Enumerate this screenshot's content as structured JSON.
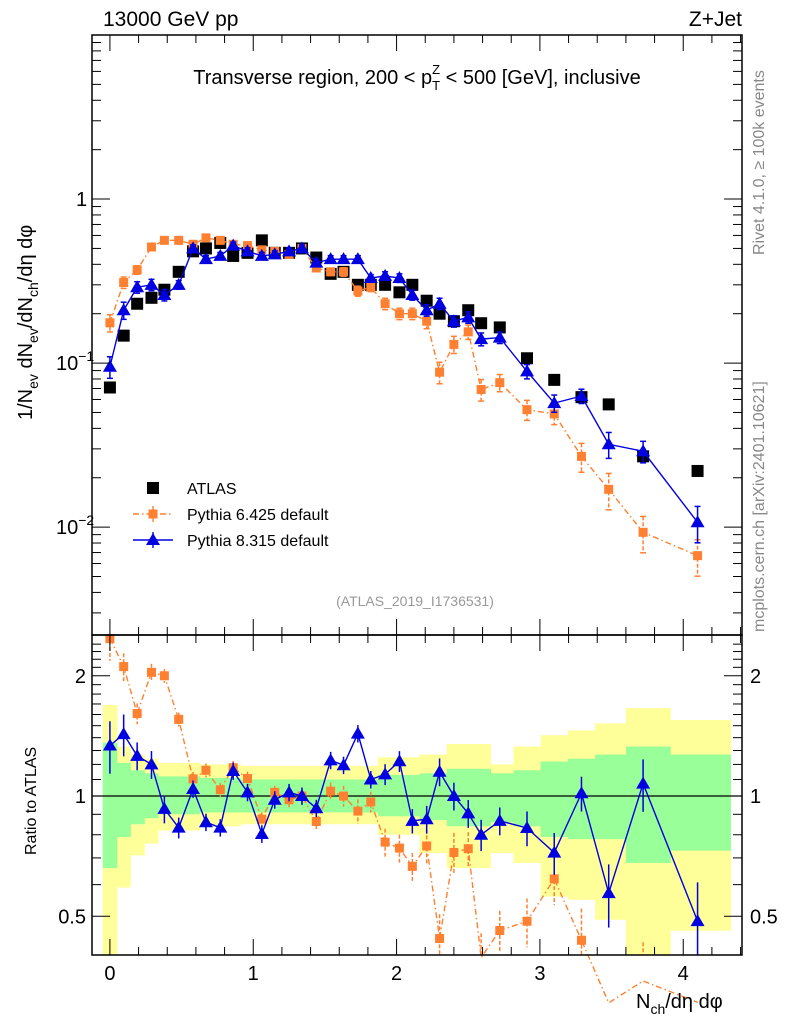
{
  "header": {
    "left": "13000 GeV pp",
    "right": "Z+Jet"
  },
  "side_text": {
    "rivet": "Rivet 4.1.0, ≥ 100k events",
    "mcplots": "mcplots.cern.ch [arXiv:2401.10621]"
  },
  "watermark": "(ATLAS_2019_I1736531)",
  "chart_data": [
    {
      "type": "scatter",
      "title_parts": {
        "pre": "Transverse region, 200 < p",
        "sup": "Z",
        "sub": "T",
        "post": " < 500 [GeV], inclusive"
      },
      "ylabel_parts": [
        "1/N",
        "ev",
        " dN",
        "ev",
        "/dN",
        "ch",
        "/dη dφ"
      ],
      "yscale": "log",
      "ylim": [
        0.0022,
        10
      ],
      "xlim": [
        -0.125,
        4.41
      ],
      "ytick_labels": [
        {
          "value": 1,
          "base": "1",
          "exp": ""
        },
        {
          "value": 0.1,
          "base": "10",
          "exp": "−1"
        },
        {
          "value": 0.01,
          "base": "10",
          "exp": "−2"
        }
      ],
      "x": [
        0,
        0.096,
        0.19,
        0.29,
        0.38,
        0.48,
        0.58,
        0.67,
        0.77,
        0.86,
        0.96,
        1.06,
        1.15,
        1.25,
        1.34,
        1.44,
        1.54,
        1.63,
        1.73,
        1.82,
        1.92,
        2.02,
        2.11,
        2.21,
        2.3,
        2.4,
        2.5,
        2.59,
        2.72,
        2.91,
        3.1,
        3.29,
        3.48,
        3.72,
        4.1
      ],
      "bin_edges": [
        -0.05,
        0.048,
        0.143,
        0.24,
        0.335,
        0.43,
        0.53,
        0.625,
        0.72,
        0.815,
        0.91,
        1.01,
        1.105,
        1.2,
        1.295,
        1.39,
        1.49,
        1.585,
        1.68,
        1.775,
        1.87,
        1.97,
        2.065,
        2.16,
        2.255,
        2.35,
        2.45,
        2.545,
        2.655,
        2.815,
        3.005,
        3.195,
        3.385,
        3.6,
        3.91,
        4.33
      ],
      "legend_position": "lower-left",
      "series": [
        {
          "name": "ATLAS",
          "color": "#000000",
          "marker": "square",
          "line": "none",
          "values": [
            0.071,
            0.147,
            0.23,
            0.25,
            0.28,
            0.36,
            0.48,
            0.5,
            0.54,
            0.45,
            0.47,
            0.56,
            0.47,
            0.47,
            0.5,
            0.44,
            0.35,
            0.36,
            0.3,
            0.3,
            0.3,
            0.27,
            0.3,
            0.24,
            0.2,
            0.18,
            0.21,
            0.175,
            0.165,
            0.107,
            0.079,
            0.062,
            0.056,
            0.027,
            0.022
          ]
        },
        {
          "name": "Pythia 6.425 default",
          "color": "#ff8030",
          "marker": "square",
          "line": "dashdot",
          "values": [
            0.176,
            0.31,
            0.37,
            0.51,
            0.56,
            0.56,
            0.53,
            0.58,
            0.56,
            0.53,
            0.52,
            0.49,
            0.48,
            0.46,
            0.5,
            0.38,
            0.36,
            0.36,
            0.275,
            0.29,
            0.23,
            0.2,
            0.2,
            0.18,
            0.088,
            0.13,
            0.155,
            0.069,
            0.076,
            0.052,
            0.049,
            0.027,
            0.017,
            0.0093,
            0.0067
          ],
          "rel_err": [
            0.12,
            0.08,
            0.06,
            0.05,
            0.04,
            0.04,
            0.04,
            0.04,
            0.04,
            0.04,
            0.04,
            0.04,
            0.04,
            0.05,
            0.05,
            0.05,
            0.05,
            0.06,
            0.07,
            0.06,
            0.08,
            0.08,
            0.08,
            0.1,
            0.15,
            0.12,
            0.1,
            0.15,
            0.12,
            0.14,
            0.14,
            0.2,
            0.25,
            0.25,
            0.25
          ]
        },
        {
          "name": "Pythia 8.315 default",
          "color": "#0000e0",
          "marker": "triangle",
          "line": "solid",
          "values": [
            0.095,
            0.21,
            0.29,
            0.3,
            0.26,
            0.3,
            0.5,
            0.43,
            0.45,
            0.52,
            0.48,
            0.45,
            0.46,
            0.48,
            0.5,
            0.41,
            0.43,
            0.43,
            0.43,
            0.33,
            0.34,
            0.33,
            0.26,
            0.21,
            0.23,
            0.18,
            0.19,
            0.14,
            0.143,
            0.089,
            0.057,
            0.063,
            0.032,
            0.029,
            0.0107
          ],
          "rel_err": [
            0.15,
            0.12,
            0.08,
            0.08,
            0.08,
            0.06,
            0.05,
            0.05,
            0.05,
            0.05,
            0.05,
            0.05,
            0.05,
            0.05,
            0.05,
            0.05,
            0.05,
            0.05,
            0.05,
            0.05,
            0.06,
            0.06,
            0.07,
            0.08,
            0.08,
            0.08,
            0.08,
            0.09,
            0.08,
            0.1,
            0.12,
            0.1,
            0.18,
            0.15,
            0.25
          ]
        }
      ]
    },
    {
      "type": "scatter",
      "ylabel": "Ratio to ATLAS",
      "xlabel_parts": [
        "N",
        "ch",
        "/dη dφ"
      ],
      "yscale": "log",
      "ylim": [
        0.4,
        2.53
      ],
      "xlim": [
        -0.125,
        4.41
      ],
      "xtick_labels": [
        "0",
        "1",
        "2",
        "3",
        "4"
      ],
      "ytick_labels": [
        {
          "value": 2,
          "label": "2"
        },
        {
          "value": 1,
          "label": "1"
        },
        {
          "value": 0.5,
          "label": "0.5"
        }
      ],
      "reference_line": 1,
      "band_green": [
        [
          0.66,
          1.36
        ],
        [
          0.79,
          1.21
        ],
        [
          0.85,
          1.16
        ],
        [
          0.88,
          1.14
        ],
        [
          0.9,
          1.12
        ],
        [
          0.9,
          1.12
        ],
        [
          0.9,
          1.12
        ],
        [
          0.91,
          1.11
        ],
        [
          0.91,
          1.11
        ],
        [
          0.91,
          1.11
        ],
        [
          0.91,
          1.1
        ],
        [
          0.91,
          1.1
        ],
        [
          0.91,
          1.1
        ],
        [
          0.91,
          1.1
        ],
        [
          0.91,
          1.1
        ],
        [
          0.91,
          1.1
        ],
        [
          0.91,
          1.1
        ],
        [
          0.91,
          1.1
        ],
        [
          0.91,
          1.1
        ],
        [
          0.91,
          1.1
        ],
        [
          0.89,
          1.13
        ],
        [
          0.89,
          1.13
        ],
        [
          0.89,
          1.13
        ],
        [
          0.87,
          1.14
        ],
        [
          0.87,
          1.14
        ],
        [
          0.84,
          1.17
        ],
        [
          0.84,
          1.17
        ],
        [
          0.84,
          1.17
        ],
        [
          0.86,
          1.14
        ],
        [
          0.84,
          1.16
        ],
        [
          0.79,
          1.22
        ],
        [
          0.78,
          1.24
        ],
        [
          0.78,
          1.27
        ],
        [
          0.68,
          1.33
        ],
        [
          0.73,
          1.27
        ]
      ],
      "band_yellow": [
        [
          0.3,
          1.69
        ],
        [
          0.59,
          1.33
        ],
        [
          0.71,
          1.27
        ],
        [
          0.76,
          1.24
        ],
        [
          0.82,
          1.21
        ],
        [
          0.82,
          1.21
        ],
        [
          0.82,
          1.21
        ],
        [
          0.84,
          1.2
        ],
        [
          0.84,
          1.2
        ],
        [
          0.84,
          1.2
        ],
        [
          0.85,
          1.19
        ],
        [
          0.85,
          1.19
        ],
        [
          0.85,
          1.19
        ],
        [
          0.85,
          1.19
        ],
        [
          0.85,
          1.19
        ],
        [
          0.85,
          1.19
        ],
        [
          0.85,
          1.19
        ],
        [
          0.85,
          1.19
        ],
        [
          0.85,
          1.19
        ],
        [
          0.85,
          1.19
        ],
        [
          0.8,
          1.25
        ],
        [
          0.8,
          1.25
        ],
        [
          0.8,
          1.25
        ],
        [
          0.72,
          1.27
        ],
        [
          0.72,
          1.27
        ],
        [
          0.66,
          1.35
        ],
        [
          0.66,
          1.35
        ],
        [
          0.66,
          1.35
        ],
        [
          0.72,
          1.2
        ],
        [
          0.68,
          1.33
        ],
        [
          0.56,
          1.42
        ],
        [
          0.55,
          1.46
        ],
        [
          0.49,
          1.52
        ],
        [
          0.3,
          1.66
        ],
        [
          0.46,
          1.55
        ]
      ],
      "band_colors": {
        "green": "#99ff99",
        "yellow": "#ffff99"
      }
    }
  ]
}
